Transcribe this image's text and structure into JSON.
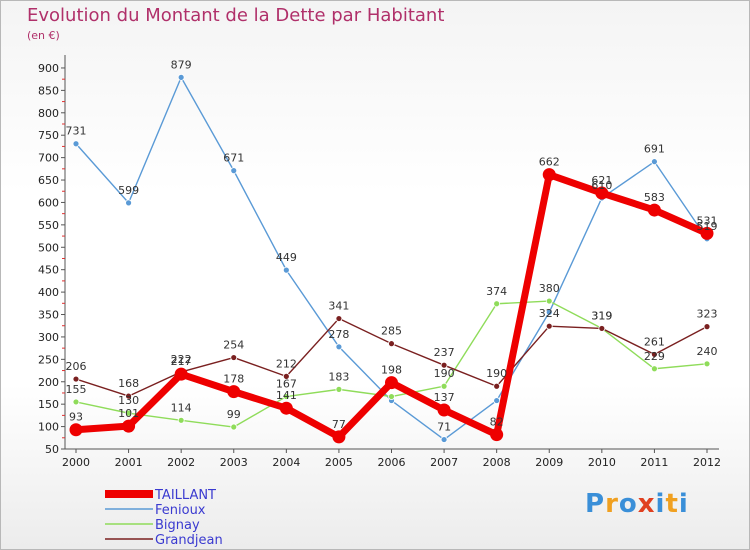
{
  "title": "Evolution du Montant de la Dette par Habitant",
  "subtitle": "(en €)",
  "logo": {
    "text": "Proxiti",
    "colors": [
      "#3a8fd8",
      "#f0a020",
      "#3a8fd8",
      "#e04020",
      "#3a8fd8",
      "#f0a020",
      "#3a8fd8"
    ]
  },
  "chart_data": {
    "type": "line",
    "x": [
      "2000",
      "2001",
      "2002",
      "2003",
      "2004",
      "2005",
      "2006",
      "2007",
      "2008",
      "2009",
      "2010",
      "2011",
      "2012"
    ],
    "yticks": [
      50,
      100,
      150,
      200,
      250,
      300,
      350,
      400,
      450,
      500,
      550,
      600,
      650,
      700,
      750,
      800,
      850,
      900
    ],
    "ylim": [
      50,
      920
    ],
    "grid": false,
    "legend_position": "bottom-left",
    "series": [
      {
        "name": "Fenioux",
        "color": "#5a9ad6",
        "values": [
          731,
          599,
          879,
          671,
          449,
          278,
          158,
          71,
          158,
          355,
          610,
          691,
          519
        ],
        "labels": [
          "731",
          "599",
          "879",
          "671",
          "449",
          "278",
          "",
          "71",
          "",
          "",
          "610",
          "691",
          "519"
        ]
      },
      {
        "name": "Bignay",
        "color": "#8fdc5a",
        "values": [
          155,
          130,
          114,
          99,
          167,
          183,
          167,
          190,
          374,
          380,
          319,
          229,
          240
        ],
        "labels": [
          "155",
          "130",
          "114",
          "99",
          "167",
          "183",
          "",
          "190",
          "374",
          "380",
          "319",
          "229",
          "240"
        ]
      },
      {
        "name": "Grandjean",
        "color": "#7a2020",
        "values": [
          206,
          168,
          222,
          254,
          212,
          341,
          285,
          237,
          190,
          324,
          319,
          261,
          323
        ],
        "labels": [
          "206",
          "168",
          "222",
          "254",
          "212",
          "341",
          "285",
          "237",
          "190",
          "324",
          "319",
          "261",
          "323"
        ]
      },
      {
        "name": "TAILLANT",
        "color": "#ee0000",
        "values": [
          93,
          101,
          217,
          178,
          141,
          77,
          198,
          137,
          82,
          662,
          621,
          583,
          531
        ],
        "labels": [
          "93",
          "101",
          "217",
          "178",
          "141",
          "77",
          "198",
          "137",
          "82",
          "662",
          "621",
          "583",
          "531"
        ]
      }
    ],
    "legend_order": [
      "TAILLANT",
      "Fenioux",
      "Bignay",
      "Grandjean"
    ]
  }
}
